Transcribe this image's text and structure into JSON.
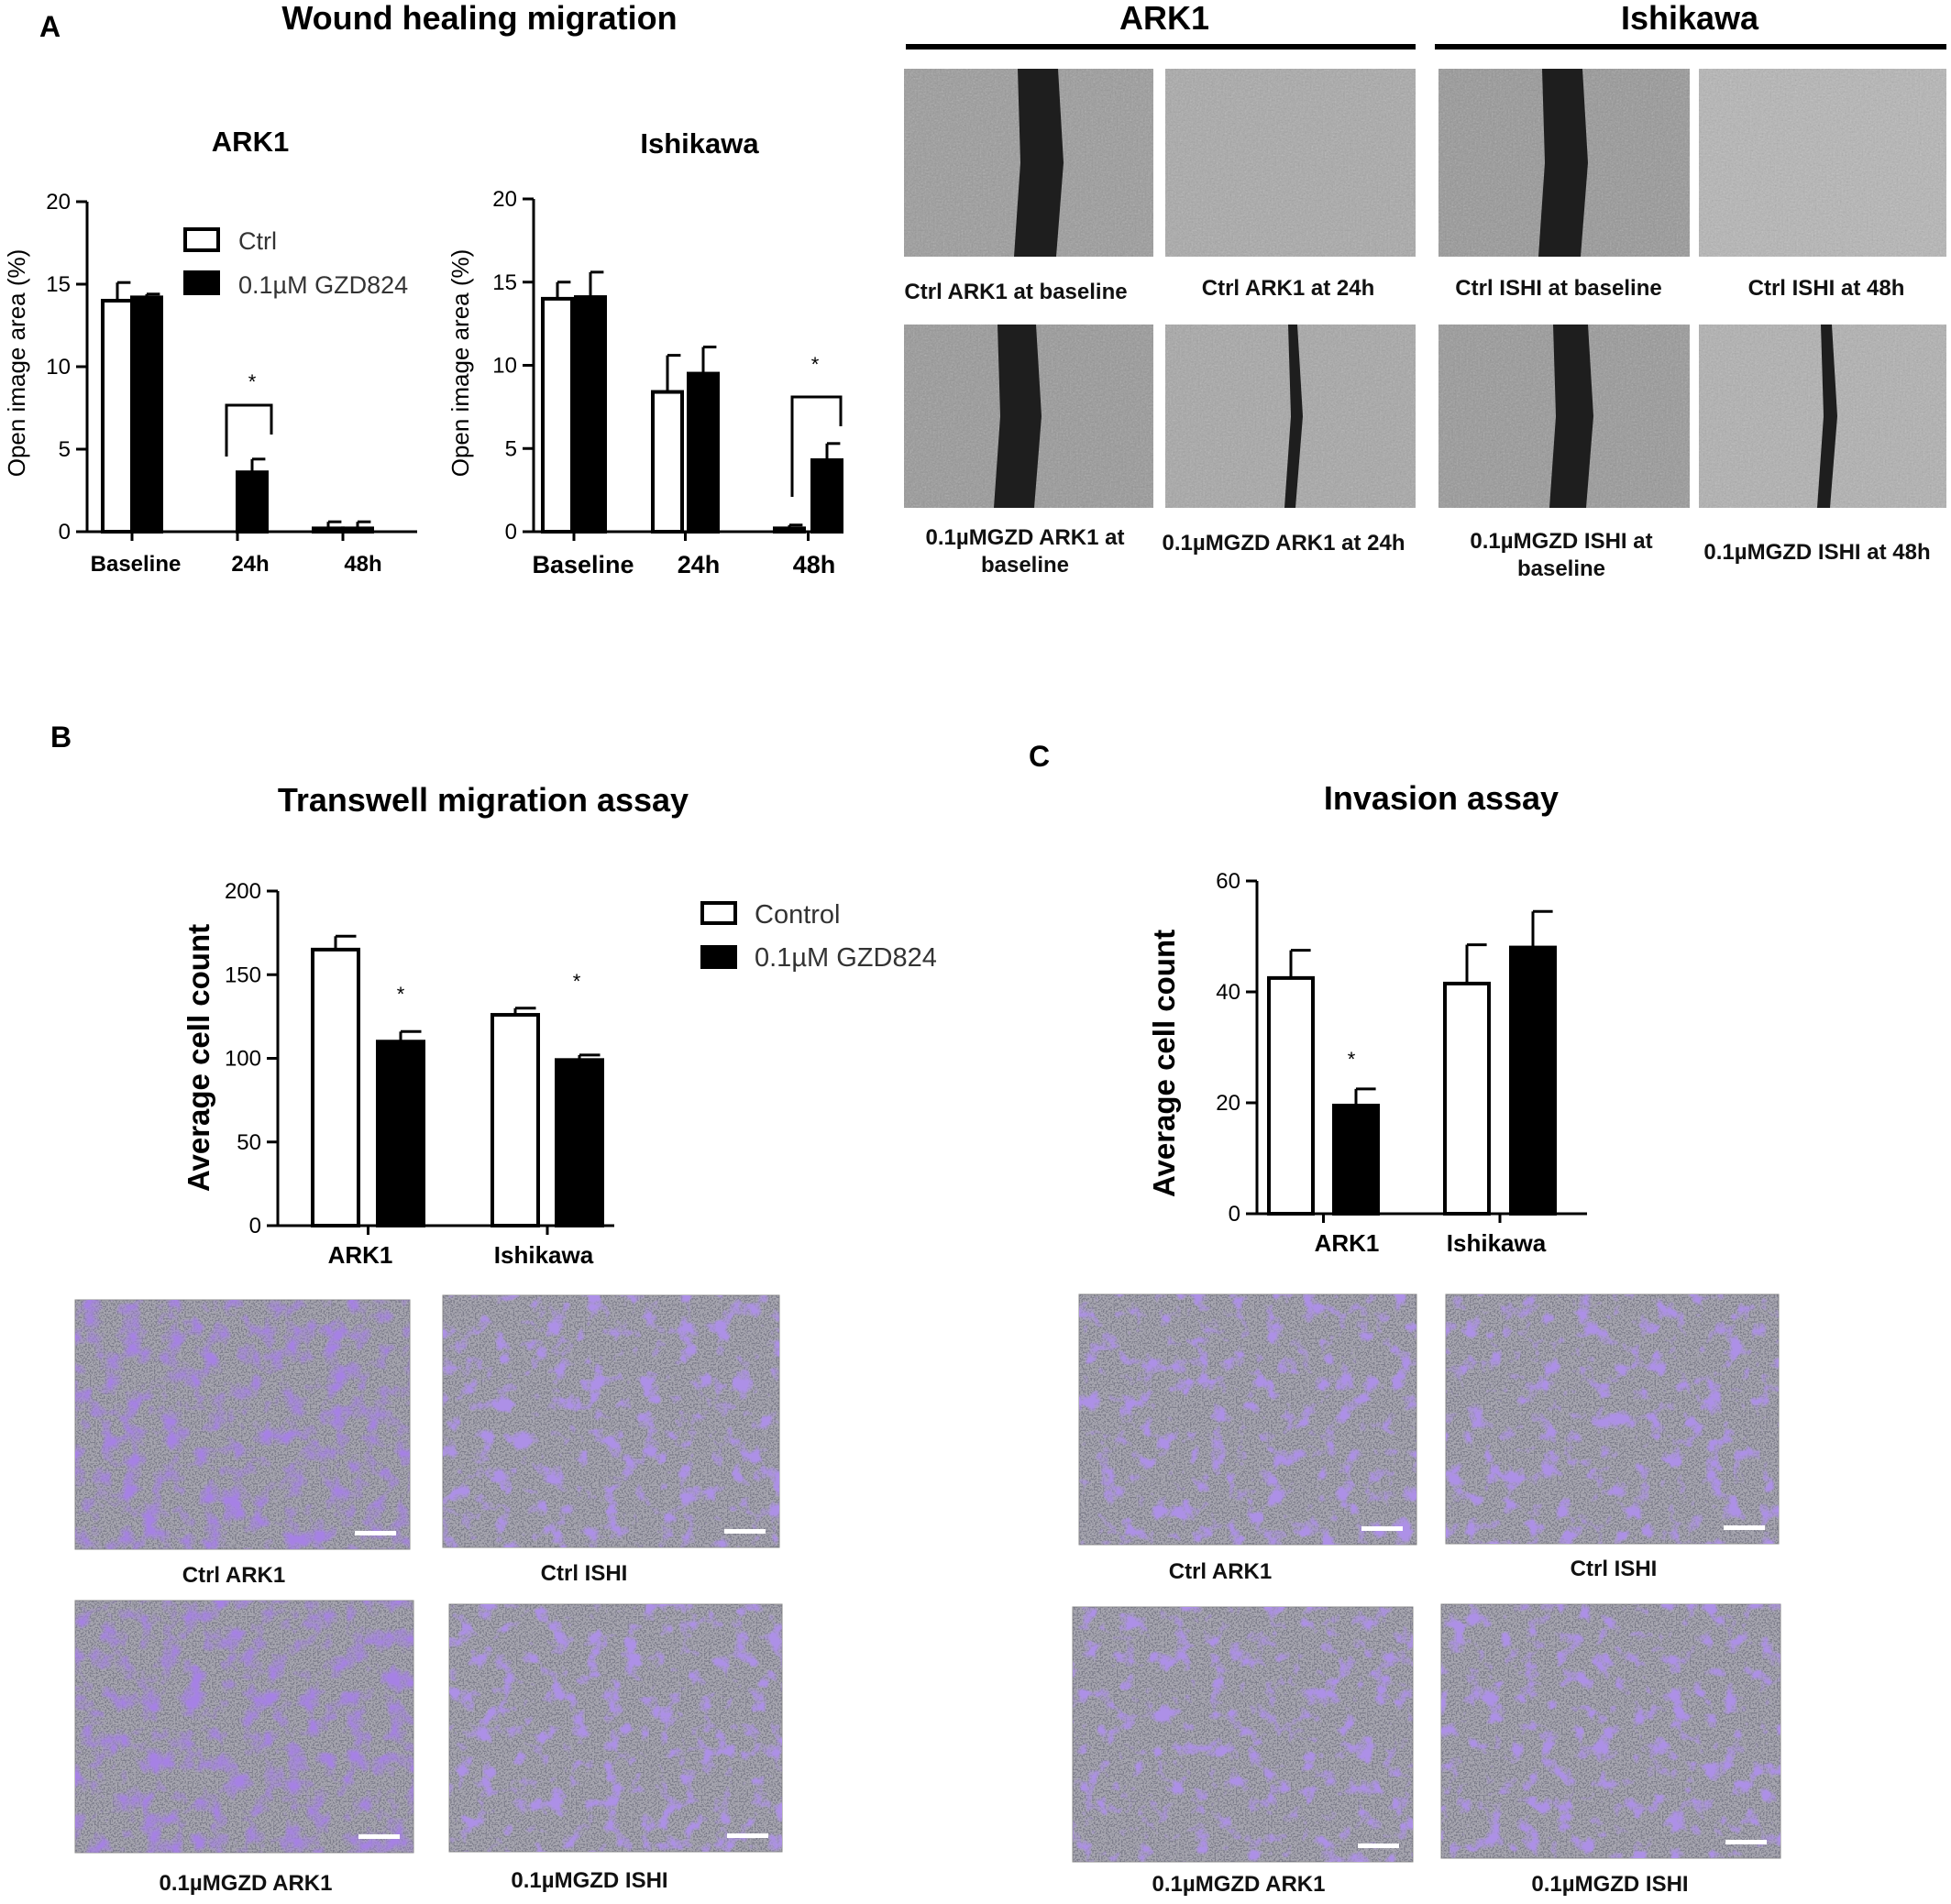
{
  "panel_a": {
    "letter": "A",
    "title": "Wound healing migration",
    "legend": [
      "Ctrl",
      "0.1µM GZD824"
    ],
    "headers": [
      "ARK1",
      "Ishikawa"
    ],
    "micro_captions": [
      [
        "Ctrl ARK1 at baseline",
        "Ctrl ARK1 at 24h",
        "Ctrl ISHI at baseline",
        "Ctrl ISHI at 48h"
      ],
      [
        "0.1µMGZD ARK1 at baseline",
        "0.1µMGZD ARK1 at 24h",
        "0.1µMGZD ISHI at baseline",
        "0.1µMGZD ISHI at 48h"
      ]
    ]
  },
  "panel_b": {
    "letter": "B",
    "title": "Transwell migration assay",
    "legend": [
      "Control",
      "0.1µM GZD824"
    ],
    "captions": [
      "Ctrl ARK1",
      "Ctrl ISHI",
      "0.1µMGZD ARK1",
      "0.1µMGZD ISHI"
    ]
  },
  "panel_c": {
    "letter": "C",
    "title": "Invasion assay",
    "captions": [
      "Ctrl ARK1",
      "Ctrl ISHI",
      "0.1µMGZD ARK1",
      "0.1µMGZD ISHI"
    ]
  },
  "chart_data": [
    {
      "type": "bar",
      "title": "ARK1",
      "ylabel": "Open image area (%)",
      "ylim": [
        0,
        20
      ],
      "yticks": [
        0,
        5,
        10,
        15,
        20
      ],
      "categories": [
        "Baseline",
        "24h",
        "48h"
      ],
      "series": [
        {
          "name": "Ctrl",
          "values": [
            14.0,
            0,
            0.2
          ],
          "errors": [
            1.1,
            0,
            0.4
          ],
          "color": "#ffffff"
        },
        {
          "name": "0.1µM GZD824",
          "values": [
            14.2,
            3.6,
            0.2
          ],
          "errors": [
            0.2,
            0.8,
            0.4
          ],
          "color": "#000000"
        }
      ],
      "significance": [
        {
          "category": "24h",
          "label": "*"
        }
      ]
    },
    {
      "type": "bar",
      "title": "Ishikawa",
      "ylabel": "Open image area (%)",
      "ylim": [
        0,
        20
      ],
      "yticks": [
        0,
        5,
        10,
        15,
        20
      ],
      "categories": [
        "Baseline",
        "24h",
        "48h"
      ],
      "series": [
        {
          "name": "Ctrl",
          "values": [
            14.0,
            8.4,
            0.2
          ],
          "errors": [
            1.0,
            2.2,
            0.2
          ],
          "color": "#ffffff"
        },
        {
          "name": "0.1µM GZD824",
          "values": [
            14.1,
            9.5,
            4.3
          ],
          "errors": [
            1.5,
            1.6,
            1.0
          ],
          "color": "#000000"
        }
      ],
      "significance": [
        {
          "category": "48h",
          "label": "*"
        }
      ]
    },
    {
      "type": "bar",
      "title": "Transwell migration assay",
      "ylabel": "Average cell count",
      "ylim": [
        0,
        200
      ],
      "yticks": [
        0,
        50,
        100,
        150,
        200
      ],
      "categories": [
        "ARK1",
        "Ishikawa"
      ],
      "series": [
        {
          "name": "Control",
          "values": [
            165,
            126
          ],
          "errors": [
            8,
            4
          ],
          "color": "#ffffff"
        },
        {
          "name": "0.1µM GZD824",
          "values": [
            110,
            99
          ],
          "errors": [
            6,
            3
          ],
          "color": "#000000"
        }
      ],
      "significance": [
        {
          "category": "ARK1",
          "label": "*"
        },
        {
          "category": "Ishikawa",
          "label": "*"
        }
      ]
    },
    {
      "type": "bar",
      "title": "Invasion assay",
      "ylabel": "Average cell count",
      "ylim": [
        0,
        60
      ],
      "yticks": [
        0,
        20,
        40,
        60
      ],
      "categories": [
        "ARK1",
        "Ishikawa"
      ],
      "series": [
        {
          "name": "Control",
          "values": [
            42.5,
            41.5
          ],
          "errors": [
            5,
            7
          ],
          "color": "#ffffff"
        },
        {
          "name": "0.1µM GZD824",
          "values": [
            19.5,
            48
          ],
          "errors": [
            3,
            6.5
          ],
          "color": "#000000"
        }
      ],
      "significance": [
        {
          "category": "ARK1",
          "label": "*"
        }
      ]
    }
  ]
}
